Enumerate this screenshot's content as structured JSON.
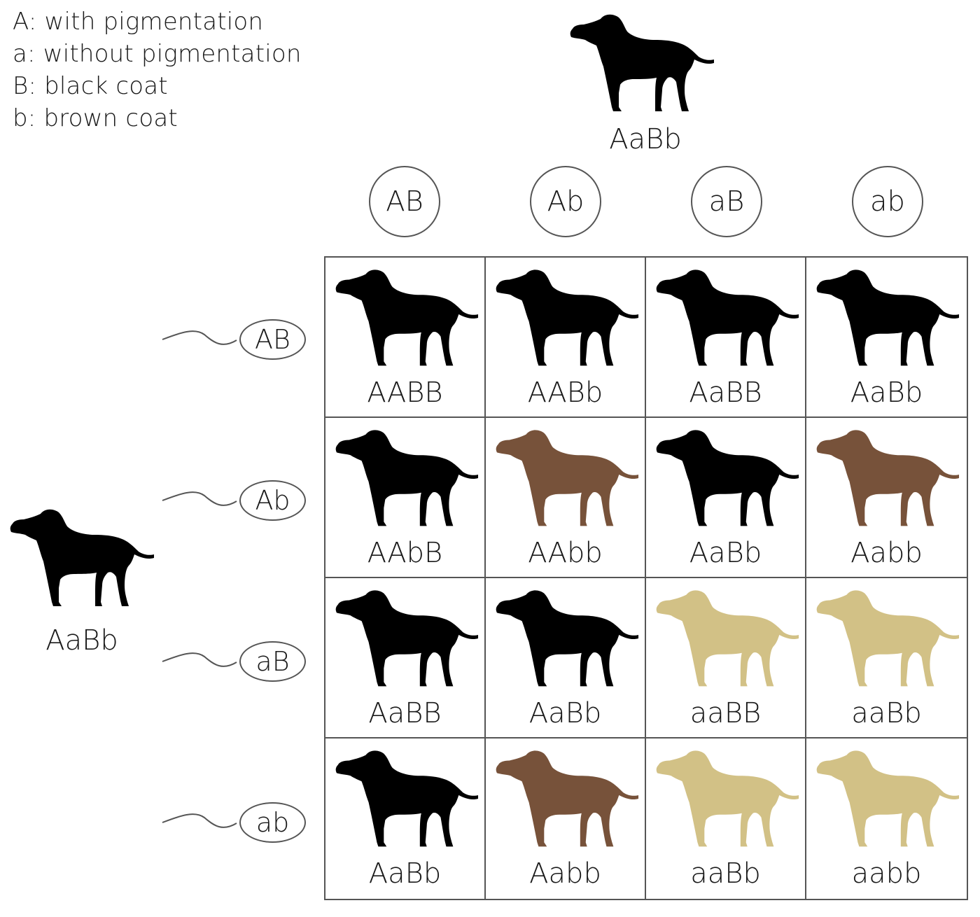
{
  "legend": [
    "A: with pigmentation",
    "a: without pigmentation",
    "B: black coat",
    "b: brown coat"
  ],
  "colors": {
    "black": "#000000",
    "brown": "#77523a",
    "yellow": "#d2c186"
  },
  "parents": {
    "top": {
      "genotype": "AaBb",
      "color": "black"
    },
    "left": {
      "genotype": "AaBb",
      "color": "black"
    }
  },
  "gametes": {
    "columns": [
      "AB",
      "Ab",
      "aB",
      "ab"
    ],
    "rows": [
      "AB",
      "Ab",
      "aB",
      "ab"
    ]
  },
  "grid": [
    [
      {
        "genotype": "AABB",
        "color": "black"
      },
      {
        "genotype": "AABb",
        "color": "black"
      },
      {
        "genotype": "AaBB",
        "color": "black"
      },
      {
        "genotype": "AaBb",
        "color": "black"
      }
    ],
    [
      {
        "genotype": "AAbB",
        "color": "black"
      },
      {
        "genotype": "AAbb",
        "color": "brown"
      },
      {
        "genotype": "AaBb",
        "color": "black"
      },
      {
        "genotype": "Aabb",
        "color": "brown"
      }
    ],
    [
      {
        "genotype": "AaBB",
        "color": "black"
      },
      {
        "genotype": "AaBb",
        "color": "black"
      },
      {
        "genotype": "aaBB",
        "color": "yellow"
      },
      {
        "genotype": "aaBb",
        "color": "yellow"
      }
    ],
    [
      {
        "genotype": "AaBb",
        "color": "black"
      },
      {
        "genotype": "Aabb",
        "color": "brown"
      },
      {
        "genotype": "aaBb",
        "color": "yellow"
      },
      {
        "genotype": "aabb",
        "color": "yellow"
      }
    ]
  ]
}
